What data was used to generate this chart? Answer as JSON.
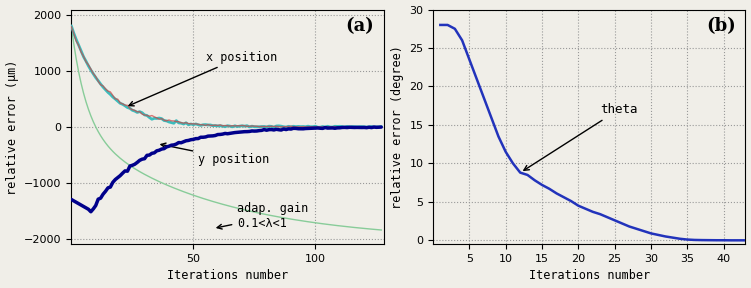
{
  "panel_a": {
    "xlim": [
      0,
      128
    ],
    "ylim": [
      -2100,
      2100
    ],
    "yticks": [
      -2000,
      -1000,
      0,
      1000,
      2000
    ],
    "xticks": [
      50,
      100
    ],
    "xlabel": "Iterations number",
    "ylabel": "relative error (µm)",
    "label": "(a)",
    "x_color": "#3CBCBC",
    "x2_color": "#CC4444",
    "y_color": "#00008B",
    "gain_color": "#88CC99",
    "bg_color": "#F0EEE8"
  },
  "panel_b": {
    "xlim": [
      0,
      43
    ],
    "ylim": [
      -0.5,
      30
    ],
    "yticks": [
      0,
      5,
      10,
      15,
      20,
      25,
      30
    ],
    "xticks": [
      5,
      10,
      15,
      20,
      25,
      30,
      35,
      40
    ],
    "xlabel": "Iterations number",
    "ylabel": "relative error (degree)",
    "label": "(b)",
    "theta_color": "#2233BB",
    "bg_color": "#F0EEE8"
  }
}
